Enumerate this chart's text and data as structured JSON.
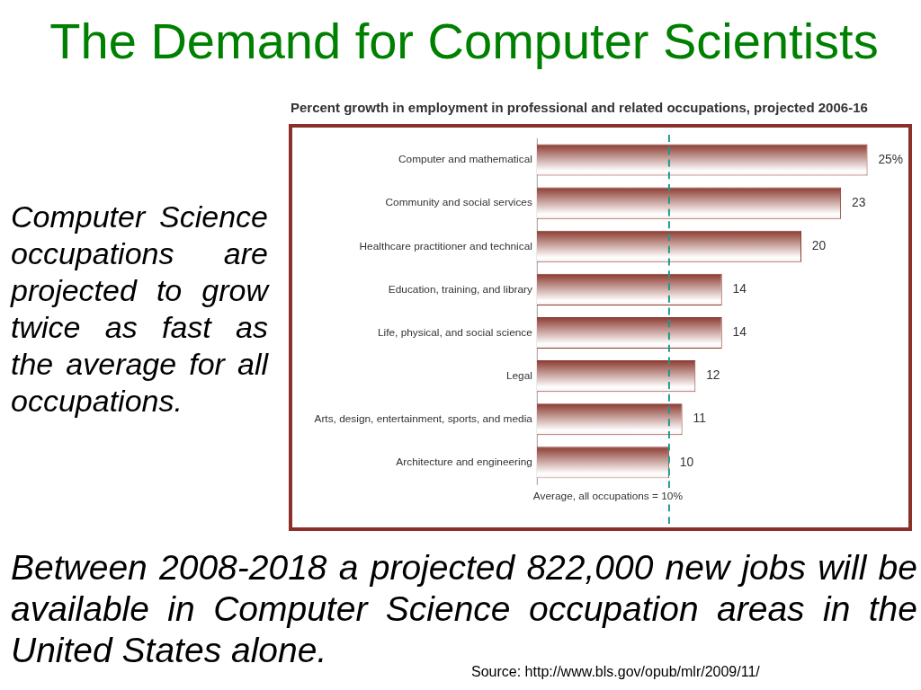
{
  "chart_data": {
    "type": "bar",
    "orientation": "horizontal",
    "title": "The Demand for Computer Scientists",
    "subtitle": "Percent growth in employment in professional and related occupations, projected 2006-16",
    "categories": [
      "Computer and mathematical",
      "Community and social services",
      "Healthcare practitioner and technical",
      "Education, training, and library",
      "Life, physical, and social science",
      "Legal",
      "Arts, design, entertainment, sports, and media",
      "Architecture and engineering"
    ],
    "values": [
      25,
      23,
      20,
      14,
      14,
      12,
      11,
      10
    ],
    "value_labels": [
      "25%",
      "23",
      "20",
      "14",
      "14",
      "12",
      "11",
      "10"
    ],
    "color": "#8b3a30",
    "tick_labels": "y",
    "grid": false,
    "legend": false,
    "ref_lines": [
      {
        "axis": "x",
        "value": 10,
        "label": "Average, all occupations = 10%",
        "color": "#1a9a8c",
        "line_style": "dashed"
      }
    ],
    "annotations": [
      "Computer Science occupations are projected to grow twice as fast as the average for all occupations.",
      "Between 2008-2018 a projected 822,000 new jobs will be available in Computer Science occupation areas in the United States alone.",
      "Source: http://www.bls.gov/opub/mlr/2009/11/"
    ]
  }
}
